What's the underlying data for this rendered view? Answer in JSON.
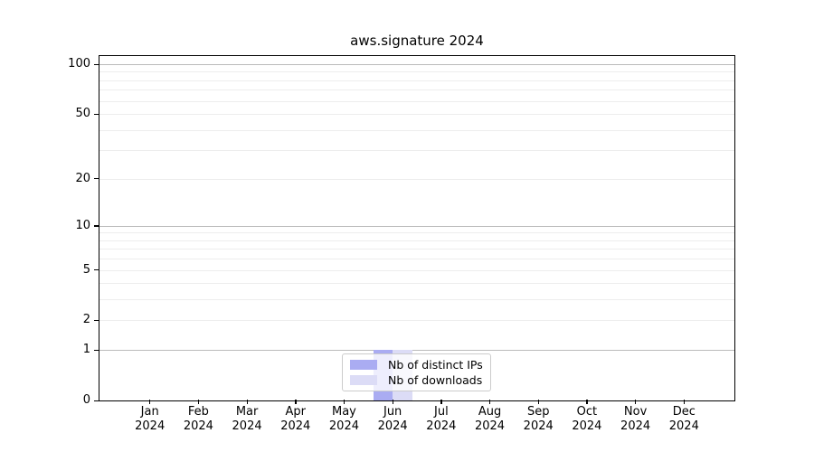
{
  "chart_data": {
    "type": "bar",
    "title": "aws.signature 2024",
    "categories": [
      "Jan",
      "Feb",
      "Mar",
      "Apr",
      "May",
      "Jun",
      "Jul",
      "Aug",
      "Sep",
      "Oct",
      "Nov",
      "Dec"
    ],
    "year": "2024",
    "series": [
      {
        "name": "Nb of distinct IPs",
        "color": "#aaacf2",
        "values": [
          0,
          0,
          0,
          0,
          0,
          1,
          0,
          0,
          0,
          0,
          0,
          0
        ]
      },
      {
        "name": "Nb of downloads",
        "color": "#dcdcf6",
        "values": [
          0,
          0,
          0,
          0,
          0,
          1,
          0,
          0,
          0,
          0,
          0,
          0
        ]
      }
    ],
    "xlabel": "",
    "ylabel": "",
    "yscale": "log1p",
    "ylim": [
      0,
      112
    ],
    "yticks": [
      0,
      1,
      2,
      5,
      10,
      20,
      50,
      100
    ],
    "major_gridlines": [
      1,
      10,
      100
    ],
    "minor_gridlines": [
      2,
      3,
      4,
      5,
      6,
      7,
      8,
      9,
      20,
      30,
      40,
      50,
      60,
      70,
      80,
      90
    ],
    "grid": true,
    "legend_position": "lower center"
  },
  "colors": {
    "background": "#ffffff",
    "frame": "#000000",
    "text": "#000000",
    "major_grid": "#bbbbbb",
    "minor_grid": "#ededed",
    "legend_border": "#cccccc"
  }
}
